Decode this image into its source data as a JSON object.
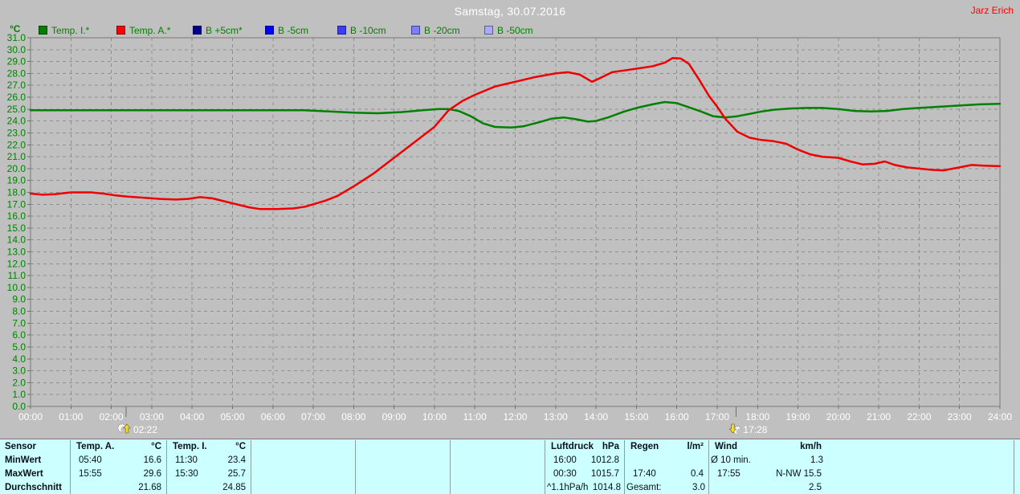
{
  "header": {
    "title": "Samstag, 30.07.2016",
    "user": "Jarz Erich"
  },
  "legend": {
    "axis_unit": "°C",
    "items": [
      {
        "label": "Temp. I.*",
        "color": "#008000"
      },
      {
        "label": "Temp. A.*",
        "color": "#ff0000"
      },
      {
        "label": "B +5cm*",
        "color": "#000090"
      },
      {
        "label": "B -5cm",
        "color": "#0000ff"
      },
      {
        "label": "B -10cm",
        "color": "#3c3cff"
      },
      {
        "label": "B -20cm",
        "color": "#7d7dff"
      },
      {
        "label": "B -50cm",
        "color": "#aaaaff"
      }
    ]
  },
  "colors": {
    "background": "#c0c0c0",
    "title": "#ffffff",
    "user": "#ff0000",
    "axis_label": "#008000",
    "x_label": "#ffffff",
    "grid": "#8f8f8f",
    "frame": "#787878",
    "tick": "#6e6e6e",
    "table_bg": "#ccffff",
    "marker_arrow": "#ffdf00"
  },
  "chart_data": {
    "type": "line",
    "title": "Samstag, 30.07.2016",
    "ylabel": "°C",
    "xlabel": "",
    "ylim": [
      0,
      31
    ],
    "y_tick_step": 1.0,
    "grid": true,
    "legend_position": "top",
    "x_ticks": [
      "00:00",
      "01:00",
      "02:00",
      "03:00",
      "04:00",
      "05:00",
      "06:00",
      "07:00",
      "08:00",
      "09:00",
      "10:00",
      "11:00",
      "12:00",
      "13:00",
      "14:00",
      "15:00",
      "16:00",
      "17:00",
      "18:00",
      "19:00",
      "20:00",
      "21:00",
      "22:00",
      "23:00",
      "24:00"
    ],
    "series": [
      {
        "name": "Temp. I.*",
        "color": "#008000",
        "points": [
          [
            0,
            24.9
          ],
          [
            1,
            24.9
          ],
          [
            2,
            24.9
          ],
          [
            3,
            24.9
          ],
          [
            4,
            24.9
          ],
          [
            5,
            24.9
          ],
          [
            6,
            24.9
          ],
          [
            6.8,
            24.9
          ],
          [
            7.4,
            24.8
          ],
          [
            8,
            24.7
          ],
          [
            8.6,
            24.65
          ],
          [
            9.2,
            24.75
          ],
          [
            9.7,
            24.9
          ],
          [
            10.1,
            25.0
          ],
          [
            10.35,
            25.0
          ],
          [
            10.6,
            24.85
          ],
          [
            10.9,
            24.4
          ],
          [
            11.2,
            23.8
          ],
          [
            11.5,
            23.5
          ],
          [
            11.9,
            23.45
          ],
          [
            12.2,
            23.55
          ],
          [
            12.6,
            23.9
          ],
          [
            12.9,
            24.2
          ],
          [
            13.2,
            24.3
          ],
          [
            13.5,
            24.15
          ],
          [
            13.8,
            23.95
          ],
          [
            14,
            24.0
          ],
          [
            14.3,
            24.3
          ],
          [
            14.7,
            24.8
          ],
          [
            15,
            25.1
          ],
          [
            15.4,
            25.4
          ],
          [
            15.7,
            25.6
          ],
          [
            16,
            25.5
          ],
          [
            16.3,
            25.15
          ],
          [
            16.6,
            24.8
          ],
          [
            16.9,
            24.4
          ],
          [
            17.2,
            24.3
          ],
          [
            17.5,
            24.4
          ],
          [
            17.8,
            24.6
          ],
          [
            18.1,
            24.8
          ],
          [
            18.4,
            24.95
          ],
          [
            18.8,
            25.05
          ],
          [
            19.2,
            25.1
          ],
          [
            19.6,
            25.1
          ],
          [
            20,
            25.0
          ],
          [
            20.4,
            24.85
          ],
          [
            20.8,
            24.8
          ],
          [
            21.2,
            24.85
          ],
          [
            21.6,
            25.0
          ],
          [
            22,
            25.1
          ],
          [
            22.5,
            25.2
          ],
          [
            23,
            25.3
          ],
          [
            23.5,
            25.4
          ],
          [
            24,
            25.45
          ]
        ]
      },
      {
        "name": "Temp. A.*",
        "color": "#ee0000",
        "points": [
          [
            0,
            17.9
          ],
          [
            0.3,
            17.8
          ],
          [
            0.6,
            17.85
          ],
          [
            1,
            18.0
          ],
          [
            1.5,
            18.0
          ],
          [
            1.8,
            17.9
          ],
          [
            2.1,
            17.75
          ],
          [
            2.4,
            17.65
          ],
          [
            2.8,
            17.55
          ],
          [
            3.2,
            17.45
          ],
          [
            3.6,
            17.4
          ],
          [
            3.9,
            17.45
          ],
          [
            4.2,
            17.6
          ],
          [
            4.5,
            17.5
          ],
          [
            4.8,
            17.25
          ],
          [
            5.1,
            17.0
          ],
          [
            5.4,
            16.75
          ],
          [
            5.67,
            16.6
          ],
          [
            6.1,
            16.6
          ],
          [
            6.5,
            16.65
          ],
          [
            6.8,
            16.8
          ],
          [
            7,
            17.0
          ],
          [
            7.3,
            17.3
          ],
          [
            7.6,
            17.7
          ],
          [
            8,
            18.5
          ],
          [
            8.5,
            19.6
          ],
          [
            9,
            20.9
          ],
          [
            9.5,
            22.2
          ],
          [
            10,
            23.5
          ],
          [
            10.35,
            24.9
          ],
          [
            10.7,
            25.7
          ],
          [
            11,
            26.2
          ],
          [
            11.5,
            26.9
          ],
          [
            12,
            27.3
          ],
          [
            12.5,
            27.7
          ],
          [
            13,
            28.0
          ],
          [
            13.3,
            28.1
          ],
          [
            13.6,
            27.9
          ],
          [
            13.9,
            27.3
          ],
          [
            14.1,
            27.6
          ],
          [
            14.4,
            28.1
          ],
          [
            14.7,
            28.25
          ],
          [
            15,
            28.4
          ],
          [
            15.4,
            28.6
          ],
          [
            15.7,
            28.9
          ],
          [
            15.9,
            29.3
          ],
          [
            16.1,
            29.25
          ],
          [
            16.3,
            28.8
          ],
          [
            16.55,
            27.5
          ],
          [
            16.8,
            26.1
          ],
          [
            17,
            25.2
          ],
          [
            17.2,
            24.2
          ],
          [
            17.5,
            23.1
          ],
          [
            17.8,
            22.6
          ],
          [
            18.1,
            22.4
          ],
          [
            18.4,
            22.3
          ],
          [
            18.7,
            22.1
          ],
          [
            19,
            21.6
          ],
          [
            19.3,
            21.2
          ],
          [
            19.6,
            21.0
          ],
          [
            20,
            20.9
          ],
          [
            20.3,
            20.6
          ],
          [
            20.6,
            20.35
          ],
          [
            20.9,
            20.4
          ],
          [
            21.15,
            20.6
          ],
          [
            21.4,
            20.3
          ],
          [
            21.7,
            20.1
          ],
          [
            22,
            20.0
          ],
          [
            22.3,
            19.9
          ],
          [
            22.6,
            19.85
          ],
          [
            23,
            20.1
          ],
          [
            23.3,
            20.3
          ],
          [
            23.6,
            20.25
          ],
          [
            24,
            20.2
          ]
        ]
      }
    ],
    "markers": [
      {
        "time": "02:22",
        "hour": 2.3667,
        "kind": "moon-rise"
      },
      {
        "time": "17:28",
        "hour": 17.4667,
        "kind": "moon-set"
      }
    ]
  },
  "footer": {
    "row_labels": [
      "Sensor",
      "MinWert",
      "MaxWert",
      "Durchschnitt"
    ],
    "columns": [
      {
        "name": "Temp. A.",
        "unit": "°C",
        "rows": [
          [
            "05:40",
            "16.6"
          ],
          [
            "15:55",
            "29.6"
          ],
          [
            "",
            "21.68"
          ]
        ]
      },
      {
        "name": "Temp. I.",
        "unit": "°C",
        "rows": [
          [
            "11:30",
            "23.4"
          ],
          [
            "15:30",
            "25.7"
          ],
          [
            "",
            "24.85"
          ]
        ]
      },
      {
        "name": "",
        "unit": "",
        "rows": [
          [
            "",
            ""
          ],
          [
            "",
            ""
          ],
          [
            "",
            ""
          ]
        ]
      },
      {
        "name": "",
        "unit": "",
        "rows": [
          [
            "",
            ""
          ],
          [
            "",
            ""
          ],
          [
            "",
            ""
          ]
        ]
      },
      {
        "name": "",
        "unit": "",
        "rows": [
          [
            "",
            ""
          ],
          [
            "",
            ""
          ],
          [
            "",
            ""
          ]
        ]
      },
      {
        "name": "Luftdruck",
        "unit": "hPa",
        "rows": [
          [
            "16:00",
            "1012.8"
          ],
          [
            "00:30",
            "1015.7"
          ],
          [
            "^1.1hPa/h",
            "1014.8"
          ]
        ]
      },
      {
        "name": "Regen",
        "unit": "l/m²",
        "rows": [
          [
            "",
            ""
          ],
          [
            "17:40",
            "0.4"
          ],
          [
            "Gesamt:",
            "3.0"
          ]
        ]
      },
      {
        "name": "Wind",
        "unit": "km/h",
        "rows": [
          [
            "Ø 10 min.",
            "1.3"
          ],
          [
            "17:55",
            "N-NW 15.5"
          ],
          [
            "",
            "2.5"
          ]
        ]
      }
    ]
  }
}
